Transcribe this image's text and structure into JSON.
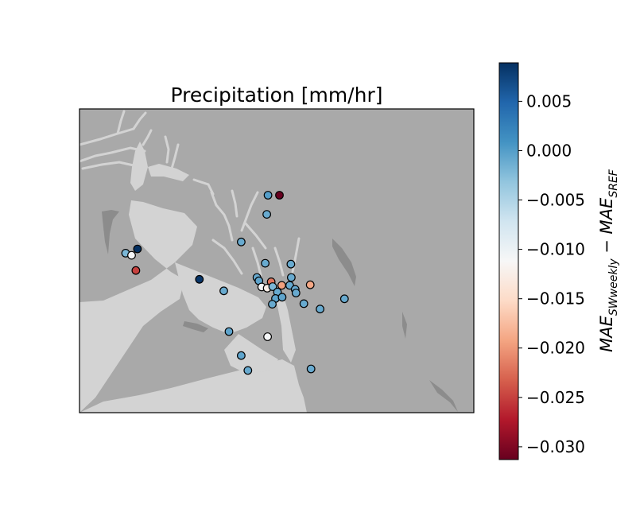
{
  "chart_data": {
    "type": "scatter",
    "title": "Precipitation [mm/hr]",
    "colorbar": {
      "label_main": "MAE",
      "label_sub1": "SWweekly",
      "label_minus": " − ",
      "label_sub2": "SREF",
      "range": [
        -0.0313,
        0.0089
      ],
      "ticks": [
        0.005,
        0.0,
        -0.005,
        -0.01,
        -0.015,
        -0.02,
        -0.025,
        -0.03
      ],
      "tick_labels": [
        "0.005",
        "0.000",
        "−0.005",
        "−0.010",
        "−0.015",
        "−0.020",
        "−0.025",
        "−0.030"
      ],
      "colormap": "RdBu"
    },
    "colors": {
      "land": "#a9a9a9",
      "water": "#d3d3d3",
      "lake": "#8c8c8c"
    },
    "stations": [
      {
        "x": 0.478,
        "y": 0.284,
        "value": 0.0
      },
      {
        "x": 0.507,
        "y": 0.284,
        "value": -0.0313
      },
      {
        "x": 0.475,
        "y": 0.347,
        "value": -0.001
      },
      {
        "x": 0.41,
        "y": 0.438,
        "value": -0.001
      },
      {
        "x": 0.147,
        "y": 0.461,
        "value": 0.0089
      },
      {
        "x": 0.117,
        "y": 0.475,
        "value": -0.002
      },
      {
        "x": 0.132,
        "y": 0.482,
        "value": -0.011
      },
      {
        "x": 0.143,
        "y": 0.532,
        "value": -0.025
      },
      {
        "x": 0.471,
        "y": 0.508,
        "value": -0.001
      },
      {
        "x": 0.536,
        "y": 0.511,
        "value": -0.001
      },
      {
        "x": 0.45,
        "y": 0.555,
        "value": -0.001
      },
      {
        "x": 0.455,
        "y": 0.566,
        "value": -0.0005
      },
      {
        "x": 0.486,
        "y": 0.569,
        "value": -0.022
      },
      {
        "x": 0.537,
        "y": 0.555,
        "value": -0.001
      },
      {
        "x": 0.304,
        "y": 0.561,
        "value": 0.0085
      },
      {
        "x": 0.462,
        "y": 0.586,
        "value": -0.011
      },
      {
        "x": 0.476,
        "y": 0.59,
        "value": -0.0125
      },
      {
        "x": 0.513,
        "y": 0.581,
        "value": -0.0195
      },
      {
        "x": 0.533,
        "y": 0.581,
        "value": -0.001
      },
      {
        "x": 0.49,
        "y": 0.585,
        "value": -0.002
      },
      {
        "x": 0.547,
        "y": 0.594,
        "value": -0.001
      },
      {
        "x": 0.585,
        "y": 0.579,
        "value": -0.019
      },
      {
        "x": 0.366,
        "y": 0.599,
        "value": -0.001
      },
      {
        "x": 0.502,
        "y": 0.603,
        "value": -0.001
      },
      {
        "x": 0.549,
        "y": 0.606,
        "value": -0.001
      },
      {
        "x": 0.497,
        "y": 0.624,
        "value": -0.0005
      },
      {
        "x": 0.514,
        "y": 0.62,
        "value": -0.0005
      },
      {
        "x": 0.489,
        "y": 0.643,
        "value": -0.001
      },
      {
        "x": 0.569,
        "y": 0.641,
        "value": -0.001
      },
      {
        "x": 0.61,
        "y": 0.659,
        "value": -0.001
      },
      {
        "x": 0.672,
        "y": 0.625,
        "value": -0.001
      },
      {
        "x": 0.379,
        "y": 0.733,
        "value": -0.0005
      },
      {
        "x": 0.477,
        "y": 0.75,
        "value": -0.011
      },
      {
        "x": 0.41,
        "y": 0.812,
        "value": -0.0005
      },
      {
        "x": 0.427,
        "y": 0.861,
        "value": -0.001
      },
      {
        "x": 0.587,
        "y": 0.856,
        "value": -0.001
      }
    ]
  }
}
